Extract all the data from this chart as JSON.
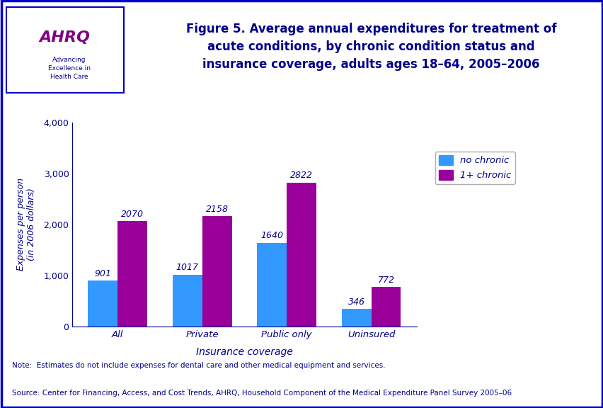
{
  "title": "Figure 5. Average annual expenditures for treatment of\nacute conditions, by chronic condition status and\ninsurance coverage, adults ages 18–64, 2005–2006",
  "categories": [
    "All",
    "Private",
    "Public only",
    "Uninsured"
  ],
  "no_chronic": [
    901,
    1017,
    1640,
    346
  ],
  "one_plus_chronic": [
    2070,
    2158,
    2822,
    772
  ],
  "bar_color_no_chronic": "#3399ff",
  "bar_color_one_plus": "#990099",
  "xlabel": "Insurance coverage",
  "ylabel": "Expenses per person\n(in 2006 dollars)",
  "ylim": [
    0,
    4000
  ],
  "yticks": [
    0,
    1000,
    2000,
    3000,
    4000
  ],
  "ytick_labels": [
    "0",
    "1,000",
    "2,000",
    "3,000",
    "4,000"
  ],
  "legend_no_chronic": "no chronic",
  "legend_one_plus": "1+ chronic",
  "note_line1": "Note:  Estimates do not include expenses for dental care and other medical equipment and services.",
  "note_line2": "Source: Center for Financing, Access, and Cost Trends, AHRQ, Household Component of the Medical Expenditure Panel Survey 2005–06",
  "title_color": "#00008B",
  "bar_width": 0.35,
  "outer_border_color": "#0000CC",
  "header_separator_color": "#0000CC",
  "background_color": "#ffffff",
  "header_bg": "#ffffff",
  "chart_bg": "#ffffff"
}
